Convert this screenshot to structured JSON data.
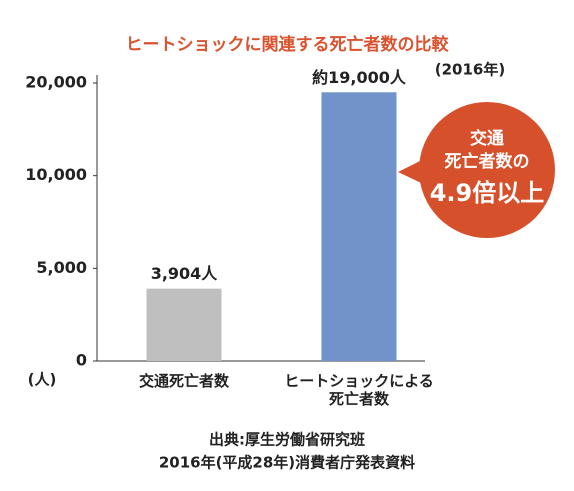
{
  "chart_data": {
    "type": "bar",
    "title": "ヒートショックに関連する死亡者数の比較",
    "subtitle": "(2016年)",
    "y_unit": "(人)",
    "categories": [
      "交通死亡者数",
      "ヒートショックによる\n死亡者数"
    ],
    "values": [
      3904,
      19000
    ],
    "value_labels": [
      "3,904人",
      "約19,000人"
    ],
    "colors": [
      "#bfbfbf",
      "#7193c9"
    ],
    "ylim": [
      0,
      20000
    ],
    "yticks": [
      0,
      {
        "value": 5000,
        "label": "5,000"
      },
      {
        "value": 10000,
        "label": "10,000"
      },
      {
        "value": 20000,
        "label": "20,000"
      }
    ],
    "grid": false,
    "annotation": {
      "lines": [
        "交通",
        "死亡者数の"
      ],
      "emphasis": "4.9倍以上",
      "color": "#d5502b"
    },
    "source": [
      "出典:厚生労働省研究班",
      "2016年(平成28年)消費者庁発表資料"
    ]
  }
}
